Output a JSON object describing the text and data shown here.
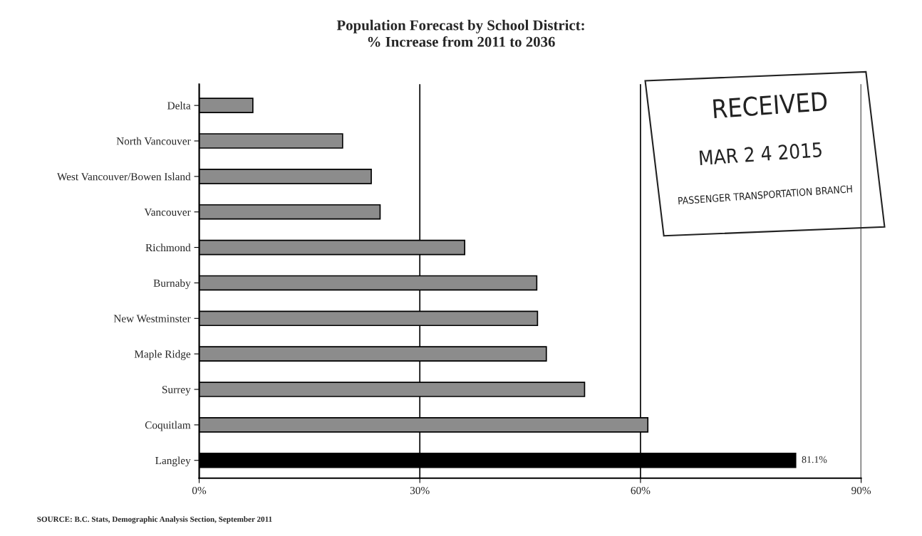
{
  "chart_data": {
    "type": "bar",
    "orientation": "horizontal",
    "title": "Population Forecast by School District:\n% Increase from 2011 to 2036",
    "categories": [
      "Delta",
      "North Vancouver",
      "West Vancouver/Bowen Island",
      "Vancouver",
      "Richmond",
      "Burnaby",
      "New Westminster",
      "Maple Ridge",
      "Surrey",
      "Coquitlam",
      "Langley"
    ],
    "values": [
      7.3,
      19.5,
      23.4,
      24.6,
      36.1,
      45.9,
      46.0,
      47.2,
      52.4,
      61.0,
      81.1
    ],
    "colors": [
      "#8c8c8c",
      "#8c8c8c",
      "#8c8c8c",
      "#8c8c8c",
      "#8c8c8c",
      "#8c8c8c",
      "#8c8c8c",
      "#8c8c8c",
      "#8c8c8c",
      "#8c8c8c",
      "#000000"
    ],
    "value_labels": [
      null,
      null,
      null,
      null,
      null,
      null,
      null,
      null,
      null,
      null,
      "81.1%"
    ],
    "xlim": [
      0,
      90
    ],
    "xticks": [
      {
        "value": 0,
        "label": "0%"
      },
      {
        "value": 30,
        "label": "30%"
      },
      {
        "value": 60,
        "label": "60%"
      },
      {
        "value": 90,
        "label": "90%"
      }
    ],
    "grid": "x",
    "legend": false,
    "annotations": [
      "SOURCE: B.C. Stats, Demographic Analysis Section, September 2011",
      "RECEIVED",
      "MAR 2 4 2015",
      "PASSENGER TRANSPORTATION BRANCH"
    ]
  }
}
